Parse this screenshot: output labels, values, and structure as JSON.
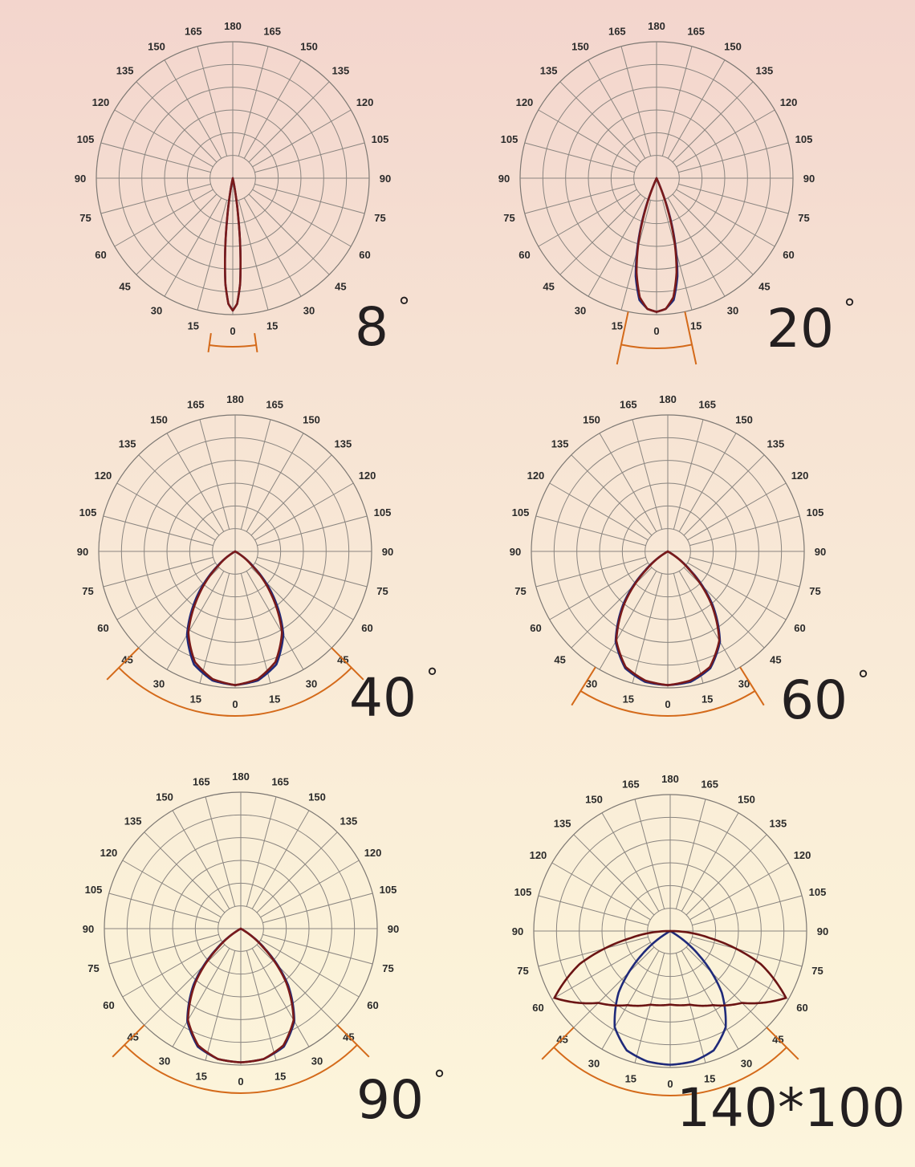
{
  "chart_data": [
    {
      "type": "polar",
      "angle_labels_left": [
        "0",
        "15",
        "30",
        "45",
        "60",
        "75",
        "90",
        "105",
        "120",
        "135",
        "150",
        "165",
        "180"
      ],
      "angle_labels_right": [
        "15",
        "30",
        "45",
        "60",
        "75",
        "90",
        "105",
        "120",
        "135",
        "150",
        "165"
      ],
      "beam_angle": 8,
      "label": "8",
      "degree_symbol": "°",
      "series": [
        {
          "color": "#1f2a7a",
          "half_angles": [
            0,
            2,
            4,
            6,
            8,
            10,
            12
          ],
          "intensity": [
            1.0,
            0.95,
            0.8,
            0.55,
            0.3,
            0.12,
            0.0
          ]
        },
        {
          "color": "#7a1a1a",
          "half_angles": [
            0,
            2,
            4,
            6,
            8,
            10,
            12
          ],
          "intensity": [
            1.0,
            0.95,
            0.8,
            0.55,
            0.3,
            0.12,
            0.0
          ]
        }
      ]
    },
    {
      "type": "polar",
      "angle_labels_left": [
        "0",
        "15",
        "30",
        "45",
        "60",
        "75",
        "90",
        "105",
        "120",
        "135",
        "150",
        "165",
        "180"
      ],
      "angle_labels_right": [
        "15",
        "30",
        "45",
        "60",
        "75",
        "90",
        "105",
        "120",
        "135",
        "150",
        "165"
      ],
      "beam_angle": 20,
      "label": "20",
      "degree_symbol": "°",
      "series": [
        {
          "color": "#1f2a7a",
          "half_angles": [
            0,
            4,
            8,
            12,
            16,
            20,
            24
          ],
          "intensity": [
            1.0,
            0.98,
            0.92,
            0.75,
            0.5,
            0.25,
            0.0
          ]
        },
        {
          "color": "#7a1a1a",
          "half_angles": [
            0,
            4,
            8,
            12,
            16,
            20,
            24
          ],
          "intensity": [
            1.0,
            0.98,
            0.9,
            0.72,
            0.48,
            0.22,
            0.0
          ]
        }
      ]
    },
    {
      "type": "polar",
      "angle_labels_left": [
        "0",
        "15",
        "30",
        "45",
        "60",
        "75",
        "90",
        "105",
        "120",
        "135",
        "150",
        "165",
        "180"
      ],
      "angle_labels_right": [
        "15",
        "30",
        "45",
        "60",
        "75",
        "90",
        "105",
        "120",
        "135",
        "150",
        "165"
      ],
      "beam_angle": 40,
      "label": "40",
      "degree_symbol": "°",
      "series": [
        {
          "color": "#1f2a7a",
          "half_angles": [
            0,
            10,
            20,
            30,
            40,
            50,
            60
          ],
          "intensity": [
            1.0,
            0.98,
            0.9,
            0.72,
            0.45,
            0.18,
            0.0
          ]
        },
        {
          "color": "#7a1a1a",
          "half_angles": [
            0,
            10,
            20,
            30,
            40,
            50,
            60
          ],
          "intensity": [
            1.0,
            0.97,
            0.88,
            0.7,
            0.42,
            0.16,
            0.0
          ]
        }
      ]
    },
    {
      "type": "polar",
      "angle_labels_left": [
        "0",
        "15",
        "30",
        "45",
        "60",
        "75",
        "90",
        "105",
        "120",
        "135",
        "150",
        "165",
        "180"
      ],
      "angle_labels_right": [
        "15",
        "30",
        "45",
        "60",
        "75",
        "90",
        "105",
        "120",
        "135",
        "150",
        "165"
      ],
      "beam_angle": 60,
      "label": "60",
      "degree_symbol": "°",
      "series": [
        {
          "color": "#1f2a7a",
          "half_angles": [
            0,
            10,
            20,
            30,
            40,
            50,
            60
          ],
          "intensity": [
            1.0,
            0.99,
            0.93,
            0.78,
            0.52,
            0.22,
            0.0
          ]
        },
        {
          "color": "#7a1a1a",
          "half_angles": [
            0,
            10,
            20,
            30,
            40,
            50,
            60
          ],
          "intensity": [
            1.0,
            0.98,
            0.92,
            0.77,
            0.5,
            0.2,
            0.0
          ]
        }
      ]
    },
    {
      "type": "polar",
      "angle_labels_left": [
        "0",
        "15",
        "30",
        "45",
        "60",
        "75",
        "90",
        "105",
        "120",
        "135",
        "150",
        "165",
        "180"
      ],
      "angle_labels_right": [
        "15",
        "30",
        "45",
        "60",
        "75",
        "90",
        "105",
        "120",
        "135",
        "150",
        "165"
      ],
      "beam_angle": 90,
      "label": "90",
      "degree_symbol": "°",
      "series": [
        {
          "color": "#1f2a7a",
          "half_angles": [
            0,
            10,
            20,
            30,
            40,
            50,
            60
          ],
          "intensity": [
            1.0,
            0.99,
            0.94,
            0.8,
            0.55,
            0.24,
            0.0
          ]
        },
        {
          "color": "#7a1a1a",
          "half_angles": [
            0,
            10,
            20,
            30,
            40,
            50,
            60
          ],
          "intensity": [
            1.0,
            0.99,
            0.93,
            0.79,
            0.53,
            0.22,
            0.0
          ]
        }
      ]
    },
    {
      "type": "polar",
      "angle_labels_left": [
        "0",
        "15",
        "30",
        "45",
        "60",
        "75",
        "90",
        "105",
        "120",
        "135",
        "150",
        "165",
        "180"
      ],
      "angle_labels_right": [
        "15",
        "30",
        "45",
        "60",
        "75",
        "90",
        "105",
        "120",
        "135",
        "150",
        "165"
      ],
      "beam_angle": 140,
      "beam_angle_secondary": 100,
      "label": "140*100",
      "degree_symbol": "°",
      "series": [
        {
          "color": "#1f2a7a",
          "half_angles": [
            0,
            10,
            20,
            30,
            40,
            50,
            60
          ],
          "intensity": [
            1.0,
            0.99,
            0.95,
            0.83,
            0.6,
            0.28,
            0.0
          ]
        },
        {
          "color": "#6b1414",
          "half_angles": [
            0,
            15,
            30,
            45,
            60,
            70,
            80,
            90
          ],
          "intensity": [
            0.55,
            0.57,
            0.64,
            0.76,
            1.0,
            0.72,
            0.3,
            0.0
          ]
        }
      ]
    }
  ]
}
